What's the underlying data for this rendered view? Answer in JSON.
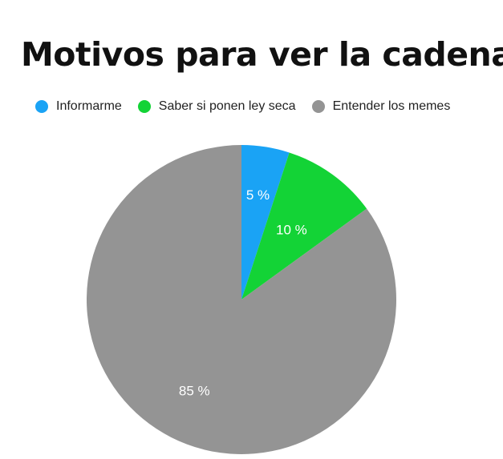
{
  "chart_data": {
    "type": "pie",
    "title": "Motivos para ver la cadena",
    "legend_position": "top",
    "categories": [
      "Informarme",
      "Saber si ponen ley seca",
      "Entender los memes"
    ],
    "values": [
      5,
      10,
      85
    ],
    "labels": [
      "5 %",
      "10 %",
      "85 %"
    ],
    "colors": [
      "#1aa3f5",
      "#13d336",
      "#949494"
    ],
    "start_angle": "12 o'clock",
    "direction": "clockwise"
  }
}
